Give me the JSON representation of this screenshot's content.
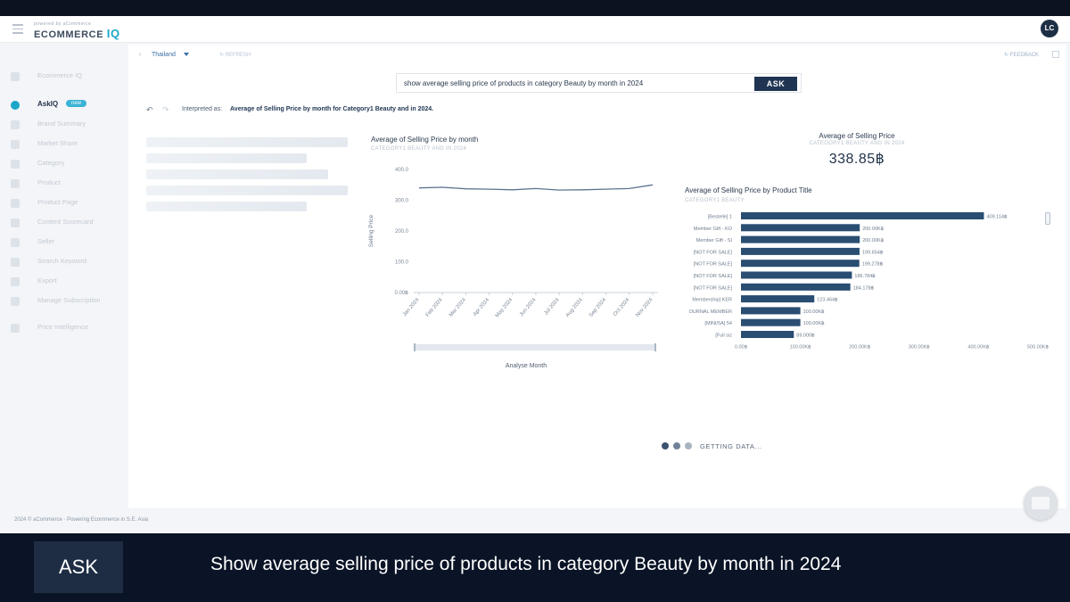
{
  "app": {
    "logo_small": "powered by aCommerce",
    "logo_main": "ECOMMERCE",
    "logo_accent": "IQ",
    "user_initials": "LC"
  },
  "sidebar": {
    "items": [
      {
        "label": "Ecommerce IQ",
        "active": false,
        "icon": "home-icon"
      },
      {
        "label": "AskIQ",
        "active": true,
        "icon": "chat-icon",
        "badge": "new"
      },
      {
        "label": "Brand Summary",
        "active": false,
        "icon": "summary-icon"
      },
      {
        "label": "Market Share",
        "active": false,
        "icon": "pie-icon"
      },
      {
        "label": "Category",
        "active": false,
        "icon": "category-icon"
      },
      {
        "label": "Product",
        "active": false,
        "icon": "product-icon"
      },
      {
        "label": "Product Page",
        "active": false,
        "icon": "page-icon"
      },
      {
        "label": "Content Scorecard",
        "active": false,
        "icon": "scorecard-icon"
      },
      {
        "label": "Seller",
        "active": false,
        "icon": "seller-icon"
      },
      {
        "label": "Search Keyword",
        "active": false,
        "icon": "search-icon"
      },
      {
        "label": "Export",
        "active": false,
        "icon": "export-icon"
      },
      {
        "label": "Manage Subscription",
        "active": false,
        "icon": "subscription-icon"
      },
      {
        "label": "Price Intelligence",
        "active": false,
        "icon": "price-icon"
      }
    ]
  },
  "toolbar": {
    "country": "Thailand",
    "refresh": "REFRESH",
    "feedback": "FEEDBACK"
  },
  "ask": {
    "query": "show average selling price of products in category Beauty by month in 2024",
    "button": "ASK"
  },
  "interpretation": {
    "label": "Interpreted as:",
    "value": "Average of Selling Price by month for Category1 Beauty and in 2024."
  },
  "kpi": {
    "title": "Average of Selling Price",
    "subtitle": "CATEGORY1 BEAUTY AND IN 2024",
    "value": "338.85฿"
  },
  "chart_data": [
    {
      "type": "line",
      "title": "Average of Selling Price by month",
      "subtitle": "CATEGORY1 BEAUTY AND IN 2024",
      "xlabel": "Analyse Month",
      "ylabel": "Selling Price",
      "x": [
        "Jan 2024",
        "Feb 2024",
        "Mar 2024",
        "Apr 2024",
        "May 2024",
        "Jun 2024",
        "Jul 2024",
        "Aug 2024",
        "Sep 2024",
        "Oct 2024",
        "Nov 2024"
      ],
      "series": [
        {
          "values": [
            340,
            342,
            337,
            336,
            334,
            338,
            333,
            334,
            336,
            338,
            350
          ]
        }
      ],
      "yticks": [
        "0.00฿",
        "100.0",
        "200.0",
        "300.0",
        "400.0"
      ],
      "ylim": [
        0,
        400
      ]
    },
    {
      "type": "bar",
      "orientation": "horizontal",
      "title": "Average of Selling Price by Product Title",
      "subtitle": "CATEGORY1 BEAUTY",
      "categories": [
        "[Bestelle] 1",
        "Member Gift - KO",
        "Member Gift - SI",
        "[NOT FOR SALE]",
        "[NOT FOR SALE]",
        "[NOT FOR SALE]",
        "[NOT FOR SALE]",
        "Membership] KER",
        "OURNAL MEMBER",
        "[MINI/5A] 54",
        "[Full siz"
      ],
      "values": [
        409.114,
        200.0,
        200.0,
        199.654,
        199.278,
        186.784,
        184.178,
        123.464,
        100.0,
        100.0,
        89.0
      ],
      "labels": [
        "409.114฿",
        "200.00K฿",
        "200.00K฿",
        "199.654฿",
        "199.278฿",
        "186.784฿",
        "184.178฿",
        "123.464฿",
        "100.00K฿",
        "100.00K฿",
        "89.000฿"
      ],
      "xticks": [
        "0.00฿",
        "100.00K฿",
        "200.00K฿",
        "300.00K฿",
        "400.00K฿",
        "500.00K฿"
      ],
      "xlim": [
        0,
        500
      ]
    }
  ],
  "loading": {
    "text": "GETTING DATA..."
  },
  "footer": {
    "text": "2024 © aCommerce · Powering Ecommerce in S.E. Asia"
  },
  "caption": {
    "label": "ASK",
    "text": "Show average selling price of products in category Beauty by month in 2024"
  },
  "colors": {
    "accent": "#1aa6c9",
    "bar": "#2a4d72",
    "line": "#5e7390",
    "navy": "#1f3552"
  }
}
